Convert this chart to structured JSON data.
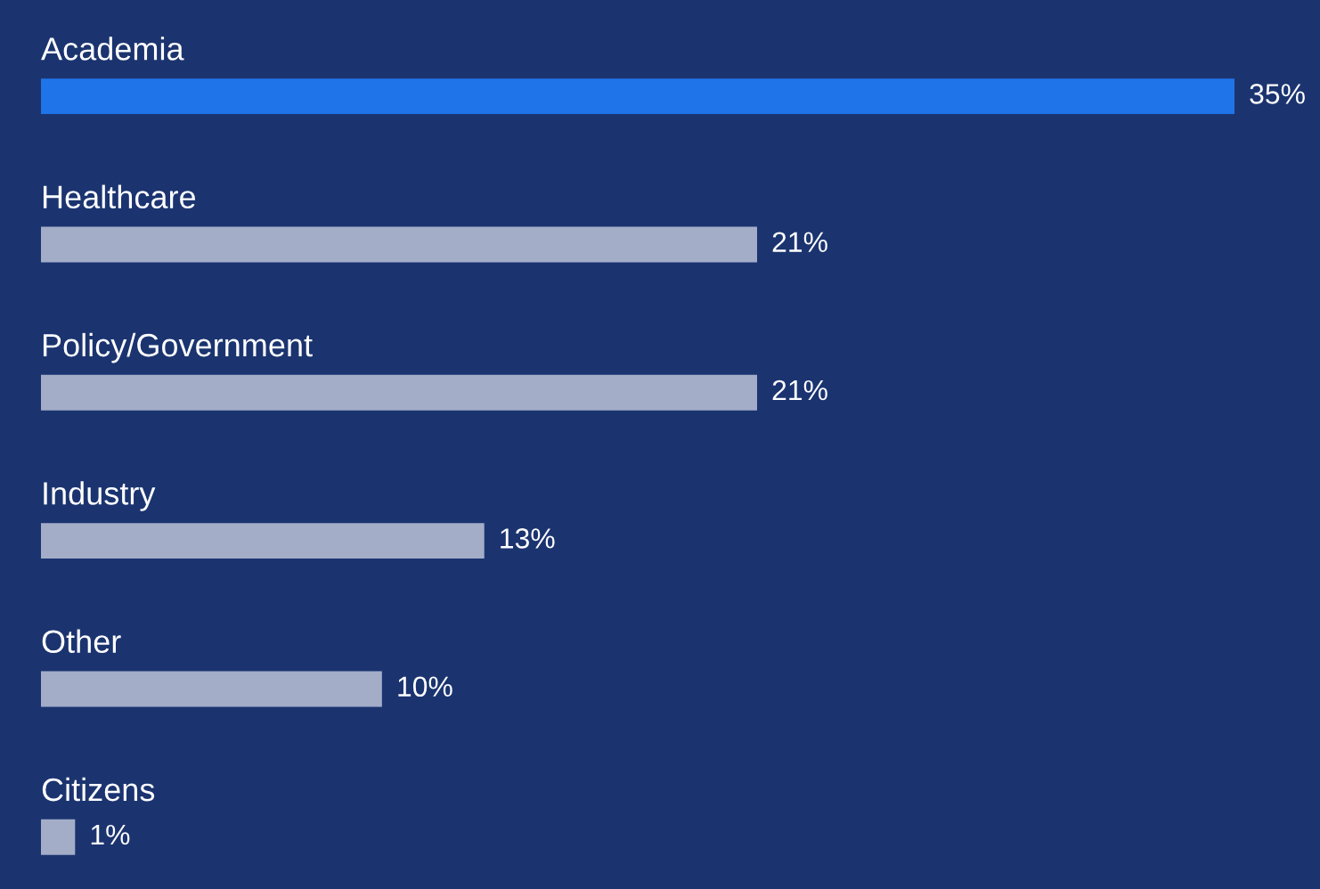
{
  "chart_data": {
    "type": "bar",
    "orientation": "horizontal",
    "categories": [
      "Academia",
      "Healthcare",
      "Policy/Government",
      "Industry",
      "Other",
      "Citizens"
    ],
    "values": [
      35,
      21,
      21,
      13,
      10,
      1
    ],
    "colors": [
      "#1f74ea",
      "#a3adc8",
      "#a3adc8",
      "#a3adc8",
      "#a3adc8",
      "#a3adc8"
    ],
    "value_labels": [
      "35%",
      "21%",
      "21%",
      "13%",
      "10%",
      "1%"
    ]
  }
}
